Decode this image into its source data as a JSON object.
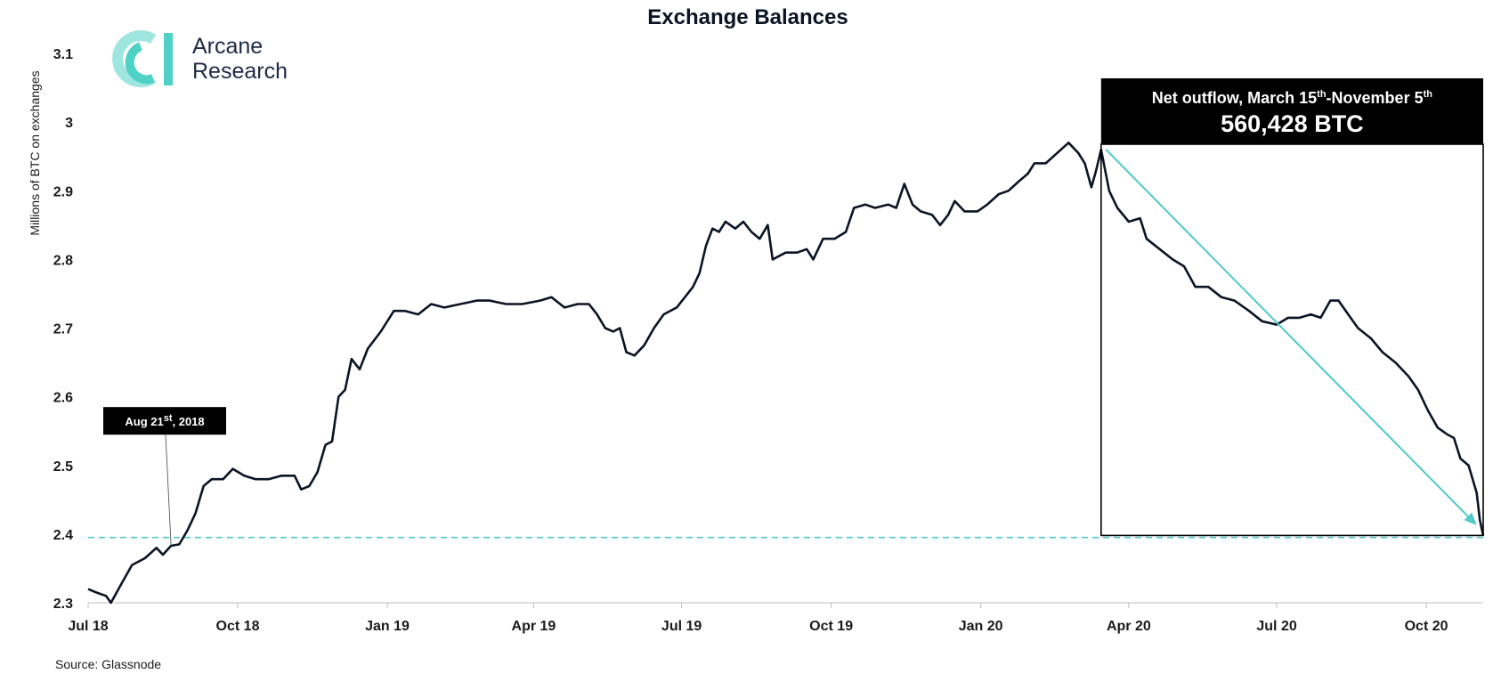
{
  "chart_data": {
    "type": "line",
    "title": "Exchange Balances",
    "ylabel": "Millions of BTC on exchanges",
    "xlabel": "",
    "source": "Source: Glassnode",
    "ylim": [
      2.3,
      3.1
    ],
    "yticks": [
      "2.3",
      "2.4",
      "2.5",
      "2.6",
      "2.7",
      "2.8",
      "2.9",
      "3",
      "3.1"
    ],
    "xticks": [
      {
        "label": "Jul 18",
        "date": "2018-07-01"
      },
      {
        "label": "Oct 18",
        "date": "2018-10-01"
      },
      {
        "label": "Jan 19",
        "date": "2019-01-01"
      },
      {
        "label": "Apr 19",
        "date": "2019-04-01"
      },
      {
        "label": "Jul 19",
        "date": "2019-07-01"
      },
      {
        "label": "Oct 19",
        "date": "2019-10-01"
      },
      {
        "label": "Jan 20",
        "date": "2020-01-01"
      },
      {
        "label": "Apr 20",
        "date": "2020-04-01"
      },
      {
        "label": "Jul 20",
        "date": "2020-07-01"
      },
      {
        "label": "Oct 20",
        "date": "2020-10-01"
      }
    ],
    "xrange": [
      "2018-07-01",
      "2020-11-05"
    ],
    "series": [
      {
        "name": "",
        "color": "#0b1424",
        "points": [
          [
            "2018-07-01",
            2.32
          ],
          [
            "2018-07-06",
            2.315
          ],
          [
            "2018-07-12",
            2.31
          ],
          [
            "2018-07-15",
            2.3
          ],
          [
            "2018-07-22",
            2.33
          ],
          [
            "2018-07-28",
            2.355
          ],
          [
            "2018-08-05",
            2.365
          ],
          [
            "2018-08-12",
            2.38
          ],
          [
            "2018-08-16",
            2.37
          ],
          [
            "2018-08-21",
            2.383
          ],
          [
            "2018-08-26",
            2.385
          ],
          [
            "2018-08-31",
            2.405
          ],
          [
            "2018-09-05",
            2.43
          ],
          [
            "2018-09-10",
            2.47
          ],
          [
            "2018-09-15",
            2.48
          ],
          [
            "2018-09-22",
            2.48
          ],
          [
            "2018-09-28",
            2.495
          ],
          [
            "2018-10-05",
            2.485
          ],
          [
            "2018-10-12",
            2.48
          ],
          [
            "2018-10-20",
            2.48
          ],
          [
            "2018-10-28",
            2.485
          ],
          [
            "2018-11-05",
            2.485
          ],
          [
            "2018-11-09",
            2.465
          ],
          [
            "2018-11-14",
            2.47
          ],
          [
            "2018-11-19",
            2.49
          ],
          [
            "2018-11-24",
            2.53
          ],
          [
            "2018-11-28",
            2.535
          ],
          [
            "2018-12-02",
            2.6
          ],
          [
            "2018-12-06",
            2.61
          ],
          [
            "2018-12-10",
            2.655
          ],
          [
            "2018-12-15",
            2.64
          ],
          [
            "2018-12-20",
            2.67
          ],
          [
            "2018-12-28",
            2.695
          ],
          [
            "2019-01-05",
            2.725
          ],
          [
            "2019-01-12",
            2.725
          ],
          [
            "2019-01-20",
            2.72
          ],
          [
            "2019-01-28",
            2.735
          ],
          [
            "2019-02-05",
            2.73
          ],
          [
            "2019-02-15",
            2.735
          ],
          [
            "2019-02-25",
            2.74
          ],
          [
            "2019-03-05",
            2.74
          ],
          [
            "2019-03-15",
            2.735
          ],
          [
            "2019-03-25",
            2.735
          ],
          [
            "2019-04-05",
            2.74
          ],
          [
            "2019-04-12",
            2.745
          ],
          [
            "2019-04-20",
            2.73
          ],
          [
            "2019-04-28",
            2.735
          ],
          [
            "2019-05-05",
            2.735
          ],
          [
            "2019-05-10",
            2.72
          ],
          [
            "2019-05-15",
            2.7
          ],
          [
            "2019-05-20",
            2.695
          ],
          [
            "2019-05-24",
            2.7
          ],
          [
            "2019-05-28",
            2.665
          ],
          [
            "2019-06-02",
            2.66
          ],
          [
            "2019-06-08",
            2.675
          ],
          [
            "2019-06-14",
            2.7
          ],
          [
            "2019-06-20",
            2.72
          ],
          [
            "2019-06-28",
            2.73
          ],
          [
            "2019-07-03",
            2.745
          ],
          [
            "2019-07-08",
            2.76
          ],
          [
            "2019-07-12",
            2.78
          ],
          [
            "2019-07-16",
            2.82
          ],
          [
            "2019-07-20",
            2.845
          ],
          [
            "2019-07-24",
            2.84
          ],
          [
            "2019-07-28",
            2.855
          ],
          [
            "2019-08-03",
            2.845
          ],
          [
            "2019-08-08",
            2.855
          ],
          [
            "2019-08-13",
            2.84
          ],
          [
            "2019-08-18",
            2.83
          ],
          [
            "2019-08-23",
            2.85
          ],
          [
            "2019-08-26",
            2.8
          ],
          [
            "2019-09-03",
            2.81
          ],
          [
            "2019-09-10",
            2.81
          ],
          [
            "2019-09-16",
            2.815
          ],
          [
            "2019-09-20",
            2.8
          ],
          [
            "2019-09-26",
            2.83
          ],
          [
            "2019-10-03",
            2.83
          ],
          [
            "2019-10-10",
            2.84
          ],
          [
            "2019-10-15",
            2.875
          ],
          [
            "2019-10-22",
            2.88
          ],
          [
            "2019-10-28",
            2.875
          ],
          [
            "2019-11-05",
            2.88
          ],
          [
            "2019-11-10",
            2.875
          ],
          [
            "2019-11-15",
            2.91
          ],
          [
            "2019-11-20",
            2.88
          ],
          [
            "2019-11-25",
            2.87
          ],
          [
            "2019-12-02",
            2.865
          ],
          [
            "2019-12-07",
            2.85
          ],
          [
            "2019-12-12",
            2.865
          ],
          [
            "2019-12-16",
            2.885
          ],
          [
            "2019-12-22",
            2.87
          ],
          [
            "2019-12-30",
            2.87
          ],
          [
            "2020-01-05",
            2.88
          ],
          [
            "2020-01-12",
            2.895
          ],
          [
            "2020-01-18",
            2.9
          ],
          [
            "2020-01-25",
            2.915
          ],
          [
            "2020-01-30",
            2.925
          ],
          [
            "2020-02-03",
            2.94
          ],
          [
            "2020-02-10",
            2.94
          ],
          [
            "2020-02-17",
            2.955
          ],
          [
            "2020-02-24",
            2.97
          ],
          [
            "2020-03-01",
            2.955
          ],
          [
            "2020-03-05",
            2.94
          ],
          [
            "2020-03-09",
            2.905
          ],
          [
            "2020-03-12",
            2.93
          ],
          [
            "2020-03-15",
            2.96
          ],
          [
            "2020-03-20",
            2.9
          ],
          [
            "2020-03-25",
            2.875
          ],
          [
            "2020-04-01",
            2.855
          ],
          [
            "2020-04-08",
            2.86
          ],
          [
            "2020-04-12",
            2.83
          ],
          [
            "2020-04-20",
            2.815
          ],
          [
            "2020-04-28",
            2.8
          ],
          [
            "2020-05-05",
            2.79
          ],
          [
            "2020-05-12",
            2.76
          ],
          [
            "2020-05-20",
            2.76
          ],
          [
            "2020-05-28",
            2.745
          ],
          [
            "2020-06-05",
            2.74
          ],
          [
            "2020-06-14",
            2.725
          ],
          [
            "2020-06-22",
            2.71
          ],
          [
            "2020-07-01",
            2.705
          ],
          [
            "2020-07-08",
            2.715
          ],
          [
            "2020-07-15",
            2.715
          ],
          [
            "2020-07-22",
            2.72
          ],
          [
            "2020-07-28",
            2.715
          ],
          [
            "2020-08-03",
            2.74
          ],
          [
            "2020-08-08",
            2.74
          ],
          [
            "2020-08-14",
            2.72
          ],
          [
            "2020-08-20",
            2.7
          ],
          [
            "2020-08-28",
            2.685
          ],
          [
            "2020-09-04",
            2.665
          ],
          [
            "2020-09-12",
            2.65
          ],
          [
            "2020-09-20",
            2.63
          ],
          [
            "2020-09-26",
            2.61
          ],
          [
            "2020-10-02",
            2.58
          ],
          [
            "2020-10-08",
            2.555
          ],
          [
            "2020-10-14",
            2.545
          ],
          [
            "2020-10-18",
            2.54
          ],
          [
            "2020-10-22",
            2.51
          ],
          [
            "2020-10-27",
            2.5
          ],
          [
            "2020-11-01",
            2.46
          ],
          [
            "2020-11-03",
            2.42
          ],
          [
            "2020-11-05",
            2.398
          ]
        ]
      }
    ],
    "reference_line": {
      "y": 2.395,
      "color": "#4fc9c9",
      "style": "dashed"
    },
    "annotations": {
      "aug_label": {
        "text": "Aug 21",
        "sup": "st",
        "tail": ", 2018",
        "date": "2018-08-21",
        "y": 2.383
      },
      "outflow_title_parts": [
        "Net outflow, March 15",
        "th",
        "-November 5",
        "th"
      ],
      "outflow_value": "560,428 BTC",
      "outflow_box": {
        "from": "2020-03-15",
        "to": "2020-11-05",
        "ymin": 2.398,
        "ytop": 2.96
      },
      "arrow": {
        "from": [
          "2020-03-18",
          2.96
        ],
        "to": [
          "2020-11-01",
          2.4
        ],
        "color": "#4fc9c9"
      }
    }
  },
  "logo": {
    "line1": "Arcane",
    "line2": "Research",
    "accent": "#4fd1c5"
  }
}
